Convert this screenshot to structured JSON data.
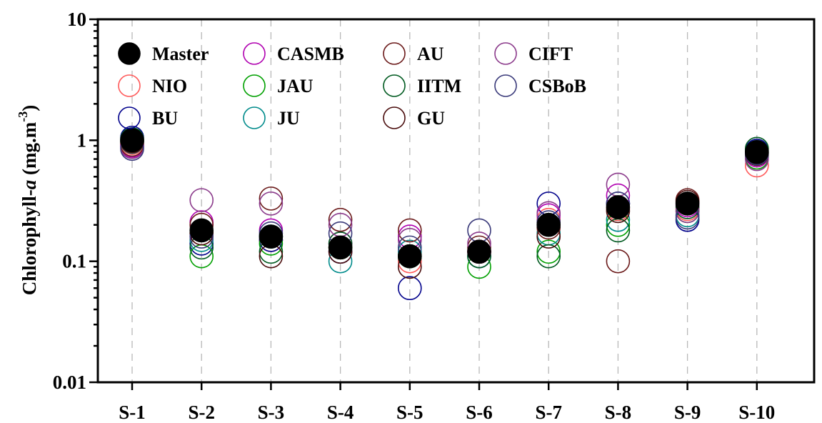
{
  "chart_data": {
    "type": "scatter",
    "ylabel": "Chlorophyll-a (mg.m-3)",
    "ylabel_parts": {
      "main": "Chlorophyll-",
      "italic": "a",
      "unit": " (mg.m",
      "sup": "-3",
      "close": ")"
    },
    "y_scale": "log",
    "ylim": [
      0.01,
      10
    ],
    "y_ticks": [
      "0.01",
      "0.1",
      "1",
      "10"
    ],
    "y_tick_values": [
      0.01,
      0.1,
      1,
      10
    ],
    "categories": [
      "S-1",
      "S-2",
      "S-3",
      "S-4",
      "S-5",
      "S-6",
      "S-7",
      "S-8",
      "S-9",
      "S-10"
    ],
    "grid": "vertical dashed",
    "legend_position": "top-left",
    "series": [
      {
        "name": "Master",
        "color": "#000000",
        "filled": true,
        "values": [
          1.0,
          0.18,
          0.16,
          0.13,
          0.11,
          0.12,
          0.2,
          0.28,
          0.3,
          0.8
        ]
      },
      {
        "name": "NIO",
        "color": "#ff5a5a",
        "filled": false,
        "values": [
          0.95,
          0.17,
          0.15,
          0.13,
          0.1,
          0.12,
          0.22,
          0.27,
          0.27,
          0.62
        ]
      },
      {
        "name": "BU",
        "color": "#00008b",
        "filled": false,
        "values": [
          1.05,
          0.14,
          0.15,
          0.12,
          0.06,
          0.11,
          0.3,
          0.3,
          0.22,
          0.82
        ]
      },
      {
        "name": "CASMB",
        "color": "#b000b0",
        "filled": false,
        "values": [
          0.9,
          0.21,
          0.18,
          0.14,
          0.16,
          0.12,
          0.24,
          0.35,
          0.29,
          0.75
        ]
      },
      {
        "name": "JAU",
        "color": "#00a000",
        "filled": false,
        "values": [
          1.0,
          0.11,
          0.14,
          0.13,
          0.11,
          0.09,
          0.12,
          0.2,
          0.26,
          0.72
        ]
      },
      {
        "name": "JU",
        "color": "#008b8b",
        "filled": false,
        "values": [
          0.97,
          0.15,
          0.16,
          0.1,
          0.12,
          0.11,
          0.17,
          0.22,
          0.24,
          0.8
        ]
      },
      {
        "name": "AU",
        "color": "#6b1a1a",
        "filled": false,
        "values": [
          0.92,
          0.2,
          0.33,
          0.22,
          0.18,
          0.13,
          0.19,
          0.1,
          0.32,
          0.79
        ]
      },
      {
        "name": "IITM",
        "color": "#005a20",
        "filled": false,
        "values": [
          1.02,
          0.13,
          0.12,
          0.14,
          0.11,
          0.11,
          0.11,
          0.18,
          0.28,
          0.85
        ]
      },
      {
        "name": "GU",
        "color": "#4a0d0d",
        "filled": false,
        "values": [
          0.98,
          0.17,
          0.11,
          0.12,
          0.09,
          0.12,
          0.16,
          0.26,
          0.31,
          0.77
        ]
      },
      {
        "name": "CIFT",
        "color": "#8b3a8b",
        "filled": false,
        "values": [
          0.88,
          0.32,
          0.3,
          0.2,
          0.15,
          0.14,
          0.25,
          0.43,
          0.26,
          0.7
        ]
      },
      {
        "name": "CSBoB",
        "color": "#3a3a7a",
        "filled": false,
        "values": [
          0.85,
          0.16,
          0.17,
          0.17,
          0.13,
          0.18,
          0.21,
          0.3,
          0.23,
          0.78
        ]
      }
    ]
  }
}
